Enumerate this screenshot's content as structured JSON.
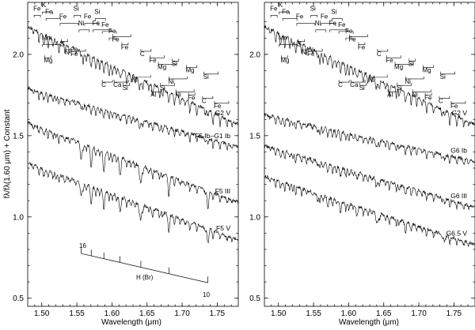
{
  "chart_data": [
    {
      "type": "line",
      "panel": "left",
      "xlabel": "Wavelength (μm)",
      "ylabel": "fλ/fλ(1.60 μm) + Constant",
      "xlim": [
        1.48,
        1.78
      ],
      "ylim": [
        0.45,
        2.32
      ],
      "xticks": [
        1.5,
        1.55,
        1.6,
        1.65,
        1.7,
        1.75
      ],
      "xtick_labels": [
        "1.50",
        "1.55",
        "1.60",
        "1.65",
        "1.70",
        "1.75"
      ],
      "yticks": [
        0.5,
        1.0,
        1.5,
        2.0
      ],
      "ytick_labels": [
        "0.5",
        "1.0",
        "1.5",
        "2.0"
      ],
      "series": [
        {
          "name": "G2  V",
          "x": [
            1.48,
            1.78
          ],
          "y": [
            2.17,
            1.57
          ]
        },
        {
          "name": "F5 Ib–G1 Ib",
          "x": [
            1.48,
            1.78
          ],
          "y": [
            1.79,
            1.43
          ]
        },
        {
          "name": "F5 III",
          "x": [
            1.48,
            1.78
          ],
          "y": [
            1.58,
            1.09
          ]
        },
        {
          "name": "F5  V",
          "x": [
            1.48,
            1.78
          ],
          "y": [
            1.33,
            0.86
          ]
        }
      ],
      "annotations": {
        "top_labels": [
          "Fe",
          "K",
          "Fe",
          "Fe",
          "Si",
          "Ni",
          "Fe",
          "Fe",
          "Fe",
          "Si",
          "Fe",
          "Mn",
          "S",
          "N",
          "Fe",
          "Fe",
          "Fe",
          "C",
          "Fe",
          "Mg",
          "Si",
          "Mg",
          "Si",
          "Ni",
          "Mg",
          "C",
          "Ca",
          "Ni",
          "Si",
          "Al",
          "Si",
          "Ni",
          "Fe",
          "C",
          "Fe"
        ],
        "brackett_label": "H (Br)",
        "brackett_start": "16",
        "brackett_end": "10"
      }
    },
    {
      "type": "line",
      "panel": "right",
      "xlabel": "Wavelength (μm)",
      "xlim": [
        1.48,
        1.78
      ],
      "ylim": [
        0.45,
        2.32
      ],
      "xticks": [
        1.5,
        1.55,
        1.6,
        1.65,
        1.7,
        1.75
      ],
      "xtick_labels": [
        "1.50",
        "1.55",
        "1.60",
        "1.65",
        "1.70",
        "1.75"
      ],
      "yticks": [
        0.5,
        1.0,
        1.5,
        2.0
      ],
      "ytick_labels": [
        "0.5",
        "1.0",
        "1.5",
        "2.0"
      ],
      "series": [
        {
          "name": "G2  V",
          "x": [
            1.48,
            1.78
          ],
          "y": [
            2.17,
            1.57
          ]
        },
        {
          "name": "G6 Ib",
          "x": [
            1.48,
            1.78
          ],
          "y": [
            1.63,
            1.34
          ]
        },
        {
          "name": "G6 III",
          "x": [
            1.48,
            1.78
          ],
          "y": [
            1.44,
            1.06
          ]
        },
        {
          "name": "G6.5  V",
          "x": [
            1.48,
            1.78
          ],
          "y": [
            1.25,
            0.83
          ]
        }
      ],
      "annotations": {
        "top_labels": [
          "Fe",
          "K",
          "Fe",
          "Fe",
          "Si",
          "Ni",
          "Fe",
          "Fe",
          "Fe",
          "Si",
          "Fe",
          "Mn",
          "S",
          "N",
          "Fe",
          "Fe",
          "Fe",
          "C",
          "Fe",
          "Mg",
          "Si",
          "Mg",
          "Si",
          "Ni",
          "Mg",
          "C",
          "Ca",
          "Ni",
          "Si",
          "Al",
          "Si",
          "Ni",
          "Fe",
          "C",
          "Fe"
        ]
      }
    }
  ]
}
